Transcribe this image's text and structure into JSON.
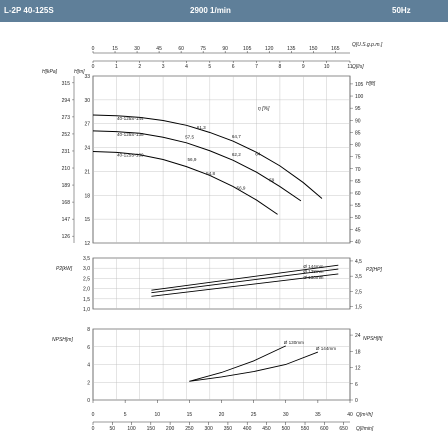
{
  "header": {
    "model": "L-2P 40-125S",
    "speed": "2900 1/min",
    "frequency": "50Hz"
  },
  "chart_data": [
    {
      "type": "line",
      "name": "head-curve",
      "flow_axes": {
        "usgpm": {
          "label": "Q[U.S.g.p.m.]",
          "ticks": [
            0,
            15,
            30,
            45,
            60,
            75,
            90,
            105,
            120,
            135,
            150,
            165
          ]
        },
        "ls": {
          "label": "Q[l/s]",
          "ticks": [
            0,
            1,
            2,
            3,
            4,
            5,
            6,
            7,
            8,
            9,
            10,
            11
          ]
        }
      },
      "xlim": [
        0,
        11
      ],
      "ylabel": "H[m]",
      "ylim": [
        12,
        33
      ],
      "yticks": [
        12,
        15,
        18,
        21,
        24,
        27,
        30,
        33
      ],
      "ylabel_kpa": "H[kPa]",
      "yticks_kpa": [
        126,
        147,
        168,
        189,
        210,
        231,
        252,
        273,
        294,
        315
      ],
      "ylabel_right": "H[ft]",
      "yticks_right": [
        40,
        45,
        50,
        55,
        60,
        65,
        70,
        75,
        80,
        85,
        90,
        95,
        100,
        105
      ],
      "efficiency_label": "η [%]",
      "series": [
        {
          "name": "40-125S-144",
          "x": [
            0,
            1,
            2,
            3,
            4,
            5,
            6,
            7,
            8,
            9,
            9.8
          ],
          "y": [
            28.1,
            28.0,
            27.8,
            27.4,
            26.8,
            25.9,
            24.8,
            23.4,
            21.7,
            19.6,
            17.6
          ]
        },
        {
          "name": "40-125S-138",
          "x": [
            0,
            1,
            2,
            3,
            4,
            5,
            6,
            7,
            8,
            8.9
          ],
          "y": [
            26.1,
            26.0,
            25.8,
            25.3,
            24.6,
            23.6,
            22.4,
            20.9,
            19.1,
            17.3
          ]
        },
        {
          "name": "40-125S-130",
          "x": [
            0,
            1,
            2,
            3,
            4,
            5,
            6,
            7,
            7.9
          ],
          "y": [
            23.5,
            23.4,
            23.1,
            22.5,
            21.6,
            20.5,
            19.1,
            17.4,
            15.6
          ]
        }
      ],
      "efficiency_points": [
        {
          "label": "61,3",
          "x": 4.4,
          "y": 26.2
        },
        {
          "label": "57,5",
          "x": 3.9,
          "y": 25.0
        },
        {
          "label": "64,7",
          "x": 5.9,
          "y": 25.1
        },
        {
          "label": "62,2",
          "x": 5.9,
          "y": 22.8
        },
        {
          "label": "56,9",
          "x": 4.0,
          "y": 22.2
        },
        {
          "label": "64",
          "x": 6.9,
          "y": 22.9
        },
        {
          "label": "54,8",
          "x": 4.8,
          "y": 20.4
        },
        {
          "label": "59",
          "x": 7.5,
          "y": 19.6
        },
        {
          "label": "56,9",
          "x": 6.1,
          "y": 18.6
        }
      ]
    },
    {
      "type": "line",
      "name": "power-curve",
      "ylabel": "P2[kW]",
      "ylim": [
        1.0,
        3.5
      ],
      "yticks": [
        "1,0",
        "1,5",
        "2,0",
        "2,5",
        "3,0",
        "3,5"
      ],
      "ylabel_right": "P2[HP]",
      "yticks_right": [
        "1,5",
        "2,5",
        "3,5",
        "4,5"
      ],
      "xlim": [
        0,
        11
      ],
      "series": [
        {
          "name": "Ø 144mm",
          "x": [
            2.5,
            10.5
          ],
          "y": [
            1.92,
            3.15
          ]
        },
        {
          "name": "Ø 138mm",
          "x": [
            2.5,
            10.5
          ],
          "y": [
            1.8,
            2.96
          ]
        },
        {
          "name": "Ø 130mm",
          "x": [
            2.5,
            10.5
          ],
          "y": [
            1.62,
            2.72
          ]
        }
      ]
    },
    {
      "type": "line",
      "name": "npsh-curve",
      "ylabel": "NPSH[m]",
      "ylim": [
        0,
        8
      ],
      "yticks": [
        0,
        2,
        4,
        6,
        8
      ],
      "ylabel_right": "NPSH[ft]",
      "yticks_right": [
        0,
        6,
        12,
        18,
        24
      ],
      "xlim": [
        0,
        40
      ],
      "series": [
        {
          "name": "Ø 130mm",
          "x": [
            15,
            20,
            25,
            30
          ],
          "y": [
            2.1,
            3.1,
            4.4,
            6.1
          ]
        },
        {
          "name": "Ø 144mm",
          "x": [
            15,
            20,
            25,
            30,
            35
          ],
          "y": [
            2.1,
            2.6,
            3.2,
            4.0,
            5.4
          ]
        }
      ],
      "x_bottom_axes": {
        "m3h": {
          "label": "Q[m³/h]",
          "ticks": [
            0,
            5,
            10,
            15,
            20,
            25,
            30,
            35,
            40
          ]
        },
        "lmin": {
          "label": "Q[l/min]",
          "ticks": [
            0,
            50,
            100,
            150,
            200,
            250,
            300,
            350,
            400,
            450,
            500,
            550,
            600,
            650
          ]
        }
      }
    }
  ]
}
